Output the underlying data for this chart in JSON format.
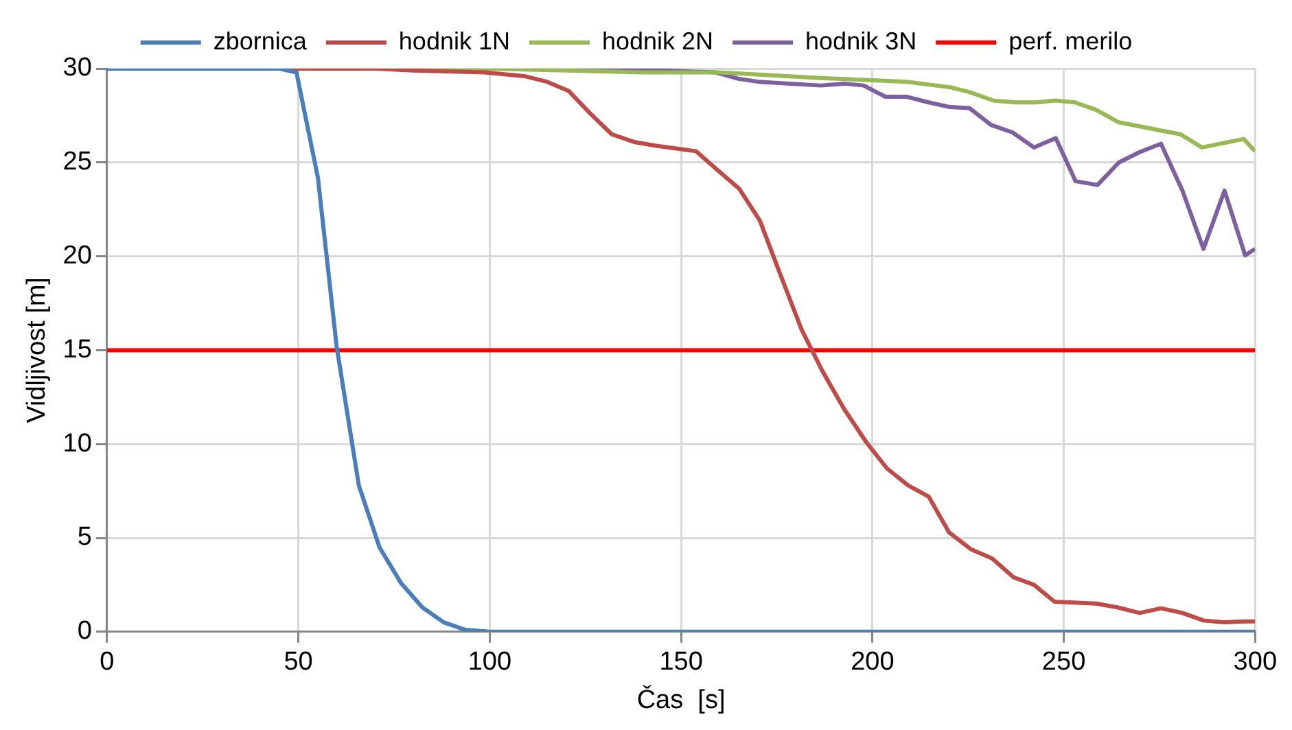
{
  "chart_data": {
    "type": "line",
    "xlabel": "Čas  [s]",
    "ylabel": "Vidljivost [m]",
    "xlim": [
      0,
      300
    ],
    "xticks": [
      0,
      50,
      100,
      150,
      200,
      250,
      300
    ],
    "ylim": [
      0,
      30
    ],
    "yticks": [
      0,
      5,
      10,
      15,
      20,
      25,
      30
    ],
    "grid": true,
    "legend": "top",
    "marker": "none",
    "line_style": "solid",
    "series": [
      {
        "name": "zbornica",
        "color": "#4a7ebb",
        "x": [
          0,
          45,
          49.5,
          55.1,
          60,
          65.8,
          71.2,
          76.8,
          82.4,
          88,
          93.7,
          100,
          150,
          200,
          250,
          300
        ],
        "values": [
          30,
          30,
          29.8,
          24.2,
          15.2,
          7.8,
          4.5,
          2.6,
          1.3,
          0.5,
          0.1,
          0,
          0,
          0,
          0,
          0
        ]
      },
      {
        "name": "hodnik 1N",
        "color": "#be4b48",
        "x": [
          0,
          70,
          80,
          98.7,
          109,
          115,
          120.7,
          126.3,
          131.9,
          137.6,
          143.2,
          153.9,
          159.5,
          165.2,
          170.6,
          176,
          181.5,
          186.9,
          192.5,
          198.4,
          203.8,
          209.3,
          214.7,
          220,
          225.7,
          231.3,
          236.9,
          242.2,
          247.6,
          258.5,
          264,
          269.8,
          275.4,
          281,
          286.5,
          292,
          297.4,
          300
        ],
        "values": [
          30,
          30,
          29.9,
          29.8,
          29.6,
          29.3,
          28.8,
          27.6,
          26.5,
          26.1,
          25.9,
          25.6,
          24.6,
          23.6,
          21.9,
          19,
          16.1,
          13.9,
          11.9,
          10.1,
          8.7,
          7.8,
          7.2,
          5.3,
          4.4,
          3.9,
          2.9,
          2.5,
          1.6,
          1.5,
          1.3,
          1.0,
          1.25,
          1.0,
          0.6,
          0.5,
          0.55,
          0.55
        ]
      },
      {
        "name": "hodnik 2N",
        "color": "#98b954",
        "x": [
          0,
          100,
          120,
          140,
          160,
          186.5,
          209,
          220.5,
          225.3,
          231.6,
          237.2,
          242.8,
          247.9,
          252.9,
          258.5,
          264.2,
          275.4,
          280.5,
          286.1,
          297,
          300
        ],
        "values": [
          30,
          30,
          29.9,
          29.8,
          29.8,
          29.5,
          29.3,
          29.0,
          28.75,
          28.3,
          28.2,
          28.2,
          28.3,
          28.2,
          27.8,
          27.15,
          26.7,
          26.5,
          25.8,
          26.25,
          25.6
        ]
      },
      {
        "name": "hodnik 3N",
        "color": "#7d60a0",
        "x": [
          0,
          130,
          145,
          158.9,
          165.2,
          170.2,
          186.5,
          192.7,
          197.7,
          203.4,
          209,
          214.7,
          220.3,
          225.3,
          231,
          236.6,
          242.2,
          247.9,
          253.1,
          258.8,
          264.4,
          269.8,
          275.4,
          281,
          286.5,
          292,
          297.4,
          300
        ],
        "values": [
          30,
          30,
          29.9,
          29.8,
          29.45,
          29.3,
          29.1,
          29.2,
          29.1,
          28.5,
          28.5,
          28.2,
          27.95,
          27.9,
          27.0,
          26.6,
          25.8,
          26.3,
          24.0,
          23.8,
          25.0,
          25.55,
          26.0,
          23.5,
          20.4,
          23.5,
          20.05,
          20.4
        ]
      }
    ],
    "ref_lines": [
      {
        "axis": "y",
        "value": 15,
        "label": "perf. merilo",
        "color": "#ff0000",
        "line_style": "solid"
      }
    ]
  }
}
